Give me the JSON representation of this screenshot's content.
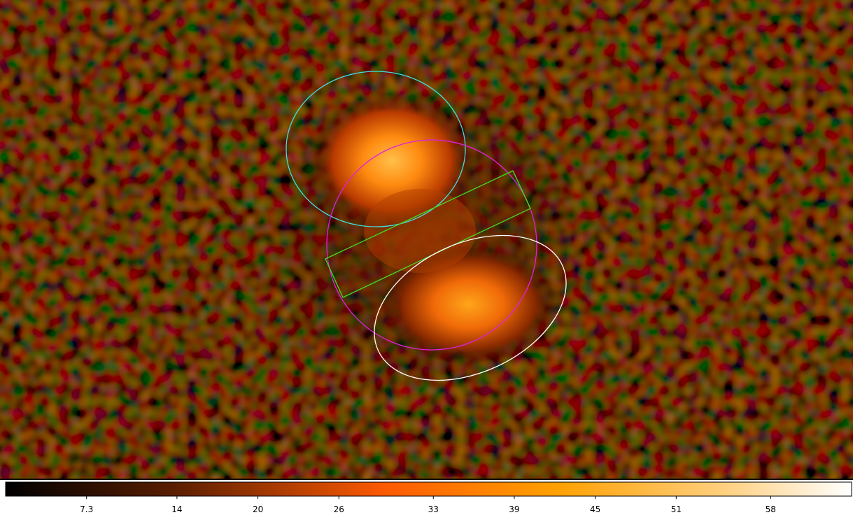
{
  "colorbar": {
    "range": [
      1.3,
      64
    ],
    "ticks": [
      7.3,
      14,
      20,
      26,
      33,
      39,
      45,
      51,
      58
    ]
  }
}
